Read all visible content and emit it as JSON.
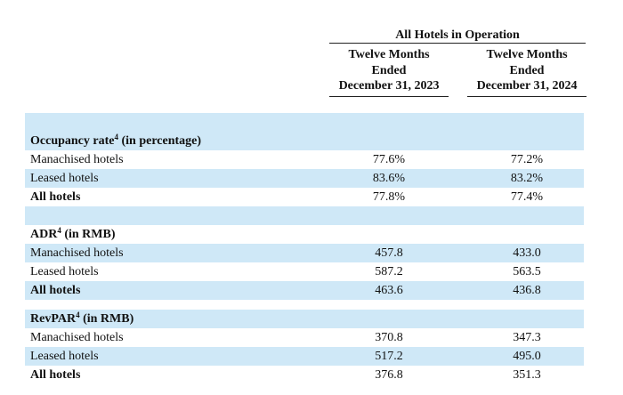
{
  "group_title": "All Hotels in Operation",
  "columns": [
    [
      "Twelve Months",
      "Ended",
      "December 31, 2023"
    ],
    [
      "Twelve Months",
      "Ended",
      "December 31, 2024"
    ]
  ],
  "sections": [
    {
      "title": "Occupancy rate",
      "sup": "4",
      "suffix": " (in percentage)",
      "rows": [
        {
          "label": "Manachised hotels",
          "v2023": "77.6%",
          "v2024": "77.2%"
        },
        {
          "label": "Leased hotels",
          "v2023": "83.6%",
          "v2024": "83.2%"
        },
        {
          "label": "All hotels",
          "v2023": "77.8%",
          "v2024": "77.4%"
        }
      ]
    },
    {
      "title": "ADR",
      "sup": "4",
      "suffix": " (in RMB)",
      "rows": [
        {
          "label": "Manachised hotels",
          "v2023": "457.8",
          "v2024": "433.0"
        },
        {
          "label": "Leased hotels",
          "v2023": "587.2",
          "v2024": "563.5"
        },
        {
          "label": "All hotels",
          "v2023": "463.6",
          "v2024": "436.8"
        }
      ]
    },
    {
      "title": "RevPAR",
      "sup": "4",
      "suffix": " (in RMB)",
      "rows": [
        {
          "label": "Manachised hotels",
          "v2023": "370.8",
          "v2024": "347.3"
        },
        {
          "label": "Leased hotels",
          "v2023": "517.2",
          "v2024": "495.0"
        },
        {
          "label": "All hotels",
          "v2023": "376.8",
          "v2024": "351.3"
        }
      ]
    }
  ]
}
